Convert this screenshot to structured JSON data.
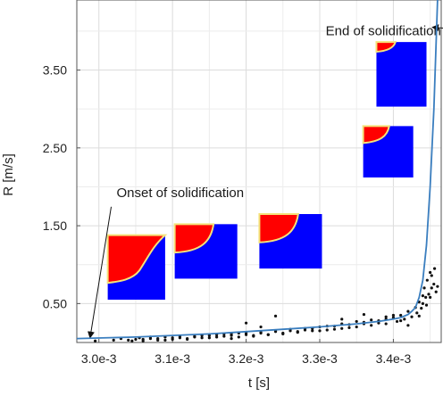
{
  "chart_data": {
    "type": "scatter",
    "title": "",
    "xlabel": "t [s]",
    "ylabel": "R [m/s]",
    "xlim": [
      0.00297,
      0.003465
    ],
    "ylim": [
      0.0,
      4.4
    ],
    "x_tick_values": [
      0.003,
      0.0031,
      0.0032,
      0.0033,
      0.0034
    ],
    "x_tick_labels": [
      "3.0e-3",
      "3.1e-3",
      "3.2e-3",
      "3.3e-3",
      "3.4e-3"
    ],
    "y_tick_values": [
      0.5,
      1.5,
      2.5,
      3.5
    ],
    "y_tick_labels": [
      "0.50",
      "1.50",
      "2.50",
      "3.50"
    ],
    "grid": true,
    "legend": "none",
    "colors": {
      "fit_line": "#3a7ebf",
      "points": "#111111",
      "inset_solid": "#ff0000",
      "inset_liquid": "#0000ff",
      "inset_interface": "#f4e27a"
    },
    "series": [
      {
        "kind": "line",
        "x": [
          0.00297,
          0.00305,
          0.0031,
          0.00315,
          0.0032,
          0.00325,
          0.0033,
          0.00335,
          0.00338,
          0.0034,
          0.00341,
          0.00342,
          0.003425,
          0.00343,
          0.003435,
          0.00344,
          0.003445,
          0.00345,
          0.003455,
          0.00346
        ],
        "y": [
          0.05,
          0.07,
          0.09,
          0.11,
          0.14,
          0.17,
          0.2,
          0.24,
          0.27,
          0.3,
          0.32,
          0.36,
          0.4,
          0.45,
          0.58,
          0.8,
          1.25,
          2.0,
          3.0,
          4.4
        ]
      },
      {
        "kind": "scatter",
        "x": [
          0.002995,
          0.00302,
          0.00303,
          0.003045,
          0.003055,
          0.00306,
          0.00307,
          0.00308,
          0.00309,
          0.0031,
          0.00311,
          0.00312,
          0.00313,
          0.00314,
          0.00315,
          0.00316,
          0.00317,
          0.00318,
          0.00319,
          0.0032,
          0.00321,
          0.00322,
          0.00323,
          0.00324,
          0.00325,
          0.00326,
          0.00327,
          0.00328,
          0.00329,
          0.0033,
          0.00331,
          0.00332,
          0.00333,
          0.00334,
          0.00335,
          0.00336,
          0.00337,
          0.00338,
          0.00339,
          0.0034,
          0.003405,
          0.00341,
          0.003415,
          0.00342,
          0.003425,
          0.00343,
          0.003432,
          0.003435,
          0.003438,
          0.00344,
          0.00344,
          0.003442,
          0.003444,
          0.003446,
          0.003448,
          0.00345,
          0.003452,
          0.003452,
          0.003455,
          0.003456,
          0.003458,
          0.00346,
          0.003445,
          0.00345,
          0.003435,
          0.00342,
          0.00341,
          0.0034,
          0.00339,
          0.00338,
          0.00337,
          0.00336,
          0.00335,
          0.00334,
          0.00333,
          0.00332,
          0.00331,
          0.0033,
          0.00329,
          0.00328,
          0.00327,
          0.00326,
          0.00325,
          0.00324,
          0.00323,
          0.00322,
          0.00321,
          0.0032,
          0.00319,
          0.00318,
          0.00317,
          0.00316,
          0.00315,
          0.00314,
          0.00313,
          0.00312,
          0.00311,
          0.0031,
          0.00309,
          0.00308,
          0.00307,
          0.00306,
          0.00305,
          0.00304,
          0.0032,
          0.00324,
          0.00328,
          0.00333,
          0.00322,
          0.00318,
          0.00336,
          0.00339
        ],
        "y": [
          0.02,
          0.03,
          0.05,
          0.02,
          0.06,
          0.04,
          0.07,
          0.05,
          0.03,
          0.06,
          0.08,
          0.05,
          0.07,
          0.09,
          0.06,
          0.1,
          0.08,
          0.11,
          0.07,
          0.12,
          0.09,
          0.13,
          0.1,
          0.15,
          0.12,
          0.17,
          0.14,
          0.18,
          0.15,
          0.2,
          0.16,
          0.21,
          0.18,
          0.23,
          0.2,
          0.26,
          0.22,
          0.28,
          0.24,
          0.32,
          0.27,
          0.35,
          0.3,
          0.4,
          0.33,
          0.45,
          0.38,
          0.52,
          0.44,
          0.6,
          0.5,
          0.7,
          0.58,
          0.8,
          0.62,
          0.9,
          0.7,
          0.86,
          0.75,
          0.95,
          0.65,
          0.72,
          0.48,
          0.58,
          0.34,
          0.22,
          0.28,
          0.35,
          0.3,
          0.25,
          0.29,
          0.24,
          0.27,
          0.19,
          0.24,
          0.17,
          0.21,
          0.15,
          0.18,
          0.16,
          0.13,
          0.15,
          0.11,
          0.14,
          0.1,
          0.12,
          0.08,
          0.1,
          0.12,
          0.09,
          0.11,
          0.07,
          0.09,
          0.06,
          0.08,
          0.04,
          0.06,
          0.04,
          0.07,
          0.03,
          0.05,
          0.02,
          0.04,
          0.03,
          0.25,
          0.34,
          0.18,
          0.3,
          0.2,
          0.05,
          0.36,
          0.33
        ]
      }
    ],
    "annotations": [
      {
        "name": "end",
        "text": "End of solidification",
        "x": 0.003308,
        "y": 3.95,
        "arrow_to": [
          0.003453,
          4.05
        ]
      },
      {
        "name": "onset",
        "text": "Onset of solidification",
        "x": 0.003024,
        "y": 1.87,
        "arrow_to": [
          0.002988,
          0.06
        ]
      }
    ]
  }
}
